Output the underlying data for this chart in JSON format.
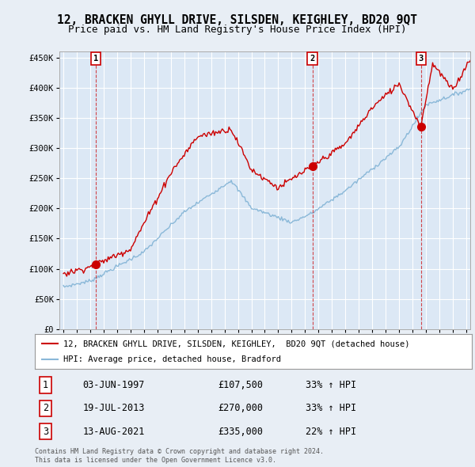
{
  "title": "12, BRACKEN GHYLL DRIVE, SILSDEN, KEIGHLEY, BD20 9QT",
  "subtitle": "Price paid vs. HM Land Registry's House Price Index (HPI)",
  "title_fontsize": 10.5,
  "subtitle_fontsize": 9,
  "ylabel_ticks": [
    "£0",
    "£50K",
    "£100K",
    "£150K",
    "£200K",
    "£250K",
    "£300K",
    "£350K",
    "£400K",
    "£450K"
  ],
  "ytick_values": [
    0,
    50000,
    100000,
    150000,
    200000,
    250000,
    300000,
    350000,
    400000,
    450000
  ],
  "ylim": [
    0,
    460000
  ],
  "xlim_start": 1994.7,
  "xlim_end": 2025.3,
  "background_color": "#e8eef5",
  "plot_bg_color": "#dce8f5",
  "grid_color": "#ffffff",
  "sale_color": "#cc0000",
  "hpi_color": "#8ab8d8",
  "transactions": [
    {
      "num": 1,
      "date_label": "03-JUN-1997",
      "x": 1997.43,
      "price": 107500,
      "pct": "33%",
      "dir": "↑"
    },
    {
      "num": 2,
      "date_label": "19-JUL-2013",
      "x": 2013.54,
      "price": 270000,
      "pct": "33%",
      "dir": "↑"
    },
    {
      "num": 3,
      "date_label": "13-AUG-2021",
      "x": 2021.62,
      "price": 335000,
      "pct": "22%",
      "dir": "↑"
    }
  ],
  "legend_line1": "12, BRACKEN GHYLL DRIVE, SILSDEN, KEIGHLEY,  BD20 9QT (detached house)",
  "legend_line2": "HPI: Average price, detached house, Bradford",
  "footer1": "Contains HM Land Registry data © Crown copyright and database right 2024.",
  "footer2": "This data is licensed under the Open Government Licence v3.0."
}
